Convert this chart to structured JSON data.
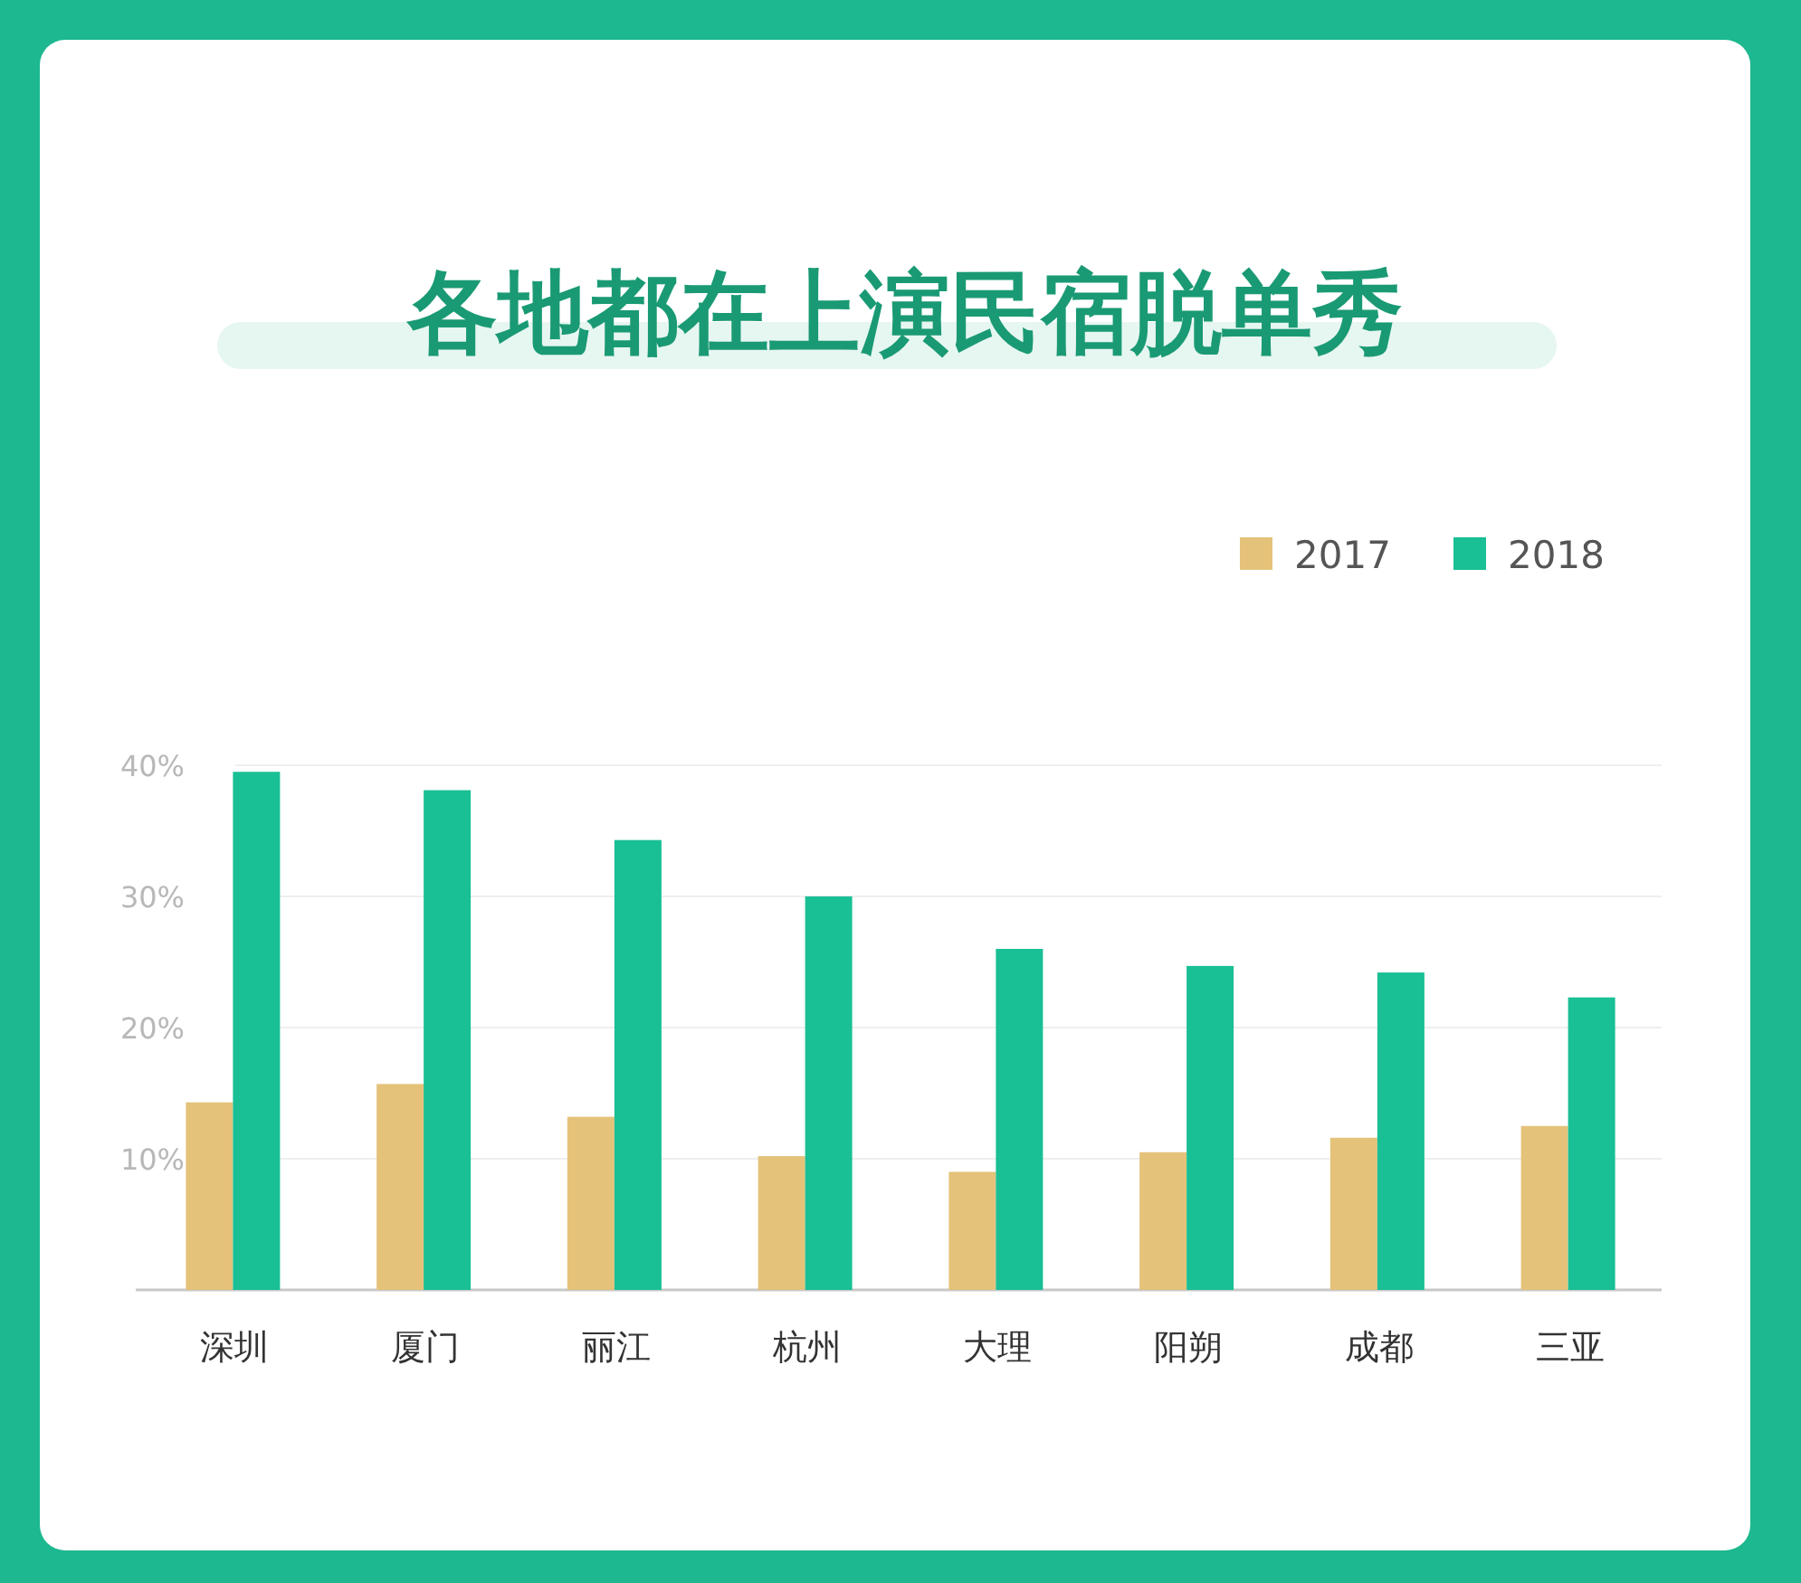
{
  "chart_data": {
    "type": "bar",
    "title": "各地都在上演民宿脱单秀",
    "categories": [
      "深圳",
      "厦门",
      "丽江",
      "杭州",
      "大理",
      "阳朔",
      "成都",
      "三亚"
    ],
    "series": [
      {
        "name": "2017",
        "color": "#e4c27a",
        "values": [
          14.3,
          15.7,
          13.2,
          10.2,
          9.0,
          10.5,
          11.6,
          12.5
        ]
      },
      {
        "name": "2018",
        "color": "#19bf95",
        "values": [
          39.5,
          38.1,
          34.3,
          30.0,
          26.0,
          24.7,
          24.2,
          22.3
        ]
      }
    ],
    "ylim": [
      0,
      40
    ],
    "yticks": [
      {
        "value": 10,
        "label": "10%"
      },
      {
        "value": 20,
        "label": "20%"
      },
      {
        "value": 30,
        "label": "30%"
      },
      {
        "value": 40,
        "label": "40%"
      }
    ],
    "grid": "y",
    "legend": "top right"
  }
}
